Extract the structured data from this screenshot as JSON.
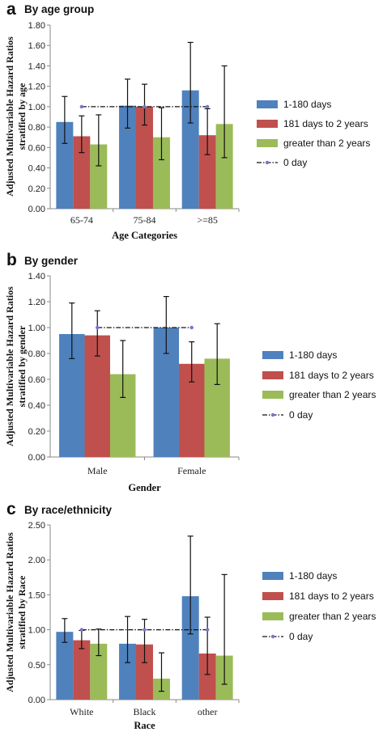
{
  "chart_data": [
    {
      "type": "bar",
      "panel_label": "a",
      "title": "By age group",
      "xlabel": "Age Categories",
      "ylabel": [
        "Adjusted Multivariable Hazard Ratios",
        "stratified by age"
      ],
      "categories": [
        "65-74",
        "75-84",
        ">=85"
      ],
      "ylim": [
        0,
        1.8
      ],
      "yticks": [
        "0.00",
        "0.20",
        "0.40",
        "0.60",
        "0.80",
        "1.00",
        "1.20",
        "1.40",
        "1.60",
        "1.80"
      ],
      "series": [
        {
          "name": "1-180 days",
          "color": "#4f81bd",
          "values": [
            0.85,
            1.01,
            1.16
          ],
          "err_low": [
            0.64,
            0.79,
            0.84
          ],
          "err_high": [
            1.1,
            1.27,
            1.63
          ]
        },
        {
          "name": "181  days to 2 years",
          "color": "#c0504d",
          "values": [
            0.71,
            1.0,
            0.72
          ],
          "err_low": [
            0.55,
            0.82,
            0.53
          ],
          "err_high": [
            0.91,
            1.22,
            0.98
          ]
        },
        {
          "name": "greater than 2 years",
          "color": "#9bbb59",
          "values": [
            0.63,
            0.7,
            0.83
          ],
          "err_low": [
            0.42,
            0.48,
            0.5
          ],
          "err_high": [
            0.92,
            0.99,
            1.4
          ]
        }
      ],
      "reference": {
        "name": "0 day",
        "value": 1.0
      },
      "legend_position": "right"
    },
    {
      "type": "bar",
      "panel_label": "b",
      "title": "By gender",
      "xlabel": "Gender",
      "ylabel": [
        "Adjusted Multivariable Hazard Ratios",
        "stratified by gender"
      ],
      "categories": [
        "Male",
        "Female"
      ],
      "ylim": [
        0,
        1.4
      ],
      "yticks": [
        "0.00",
        "0.20",
        "0.40",
        "0.60",
        "0.80",
        "1.00",
        "1.20",
        "1.40"
      ],
      "series": [
        {
          "name": "1-180 days",
          "color": "#4f81bd",
          "values": [
            0.95,
            1.0
          ],
          "err_low": [
            0.76,
            0.8
          ],
          "err_high": [
            1.19,
            1.24
          ]
        },
        {
          "name": "181  days to 2 years",
          "color": "#c0504d",
          "values": [
            0.94,
            0.72
          ],
          "err_low": [
            0.78,
            0.58
          ],
          "err_high": [
            1.13,
            0.89
          ]
        },
        {
          "name": "greater than 2 years",
          "color": "#9bbb59",
          "values": [
            0.64,
            0.76
          ],
          "err_low": [
            0.46,
            0.56
          ],
          "err_high": [
            0.9,
            1.03
          ]
        }
      ],
      "reference": {
        "name": "0 day",
        "value": 1.0
      },
      "legend_position": "right"
    },
    {
      "type": "bar",
      "panel_label": "c",
      "title": "By race/ethnicity",
      "xlabel": "Race",
      "ylabel": [
        "Adjusted Multivariable Hazard Ratios",
        "stratified by  Race"
      ],
      "categories": [
        "White",
        "Black",
        "other"
      ],
      "ylim": [
        0,
        2.5
      ],
      "yticks": [
        "0.00",
        "0.50",
        "1.00",
        "1.50",
        "2.00",
        "2.50"
      ],
      "series": [
        {
          "name": "1-180 days",
          "color": "#4f81bd",
          "values": [
            0.97,
            0.8,
            1.48
          ],
          "err_low": [
            0.82,
            0.53,
            0.94
          ],
          "err_high": [
            1.16,
            1.19,
            2.34
          ]
        },
        {
          "name": "181 days to 2 years",
          "color": "#c0504d",
          "values": [
            0.85,
            0.79,
            0.66
          ],
          "err_low": [
            0.73,
            0.53,
            0.36
          ],
          "err_high": [
            0.99,
            1.15,
            1.18
          ]
        },
        {
          "name": "greater than 2 years",
          "color": "#9bbb59",
          "values": [
            0.8,
            0.3,
            0.63
          ],
          "err_low": [
            0.63,
            0.12,
            0.22
          ],
          "err_high": [
            1.01,
            0.67,
            1.79
          ]
        }
      ],
      "reference": {
        "name": "0 day",
        "value": 1.0
      },
      "legend_position": "right"
    }
  ]
}
